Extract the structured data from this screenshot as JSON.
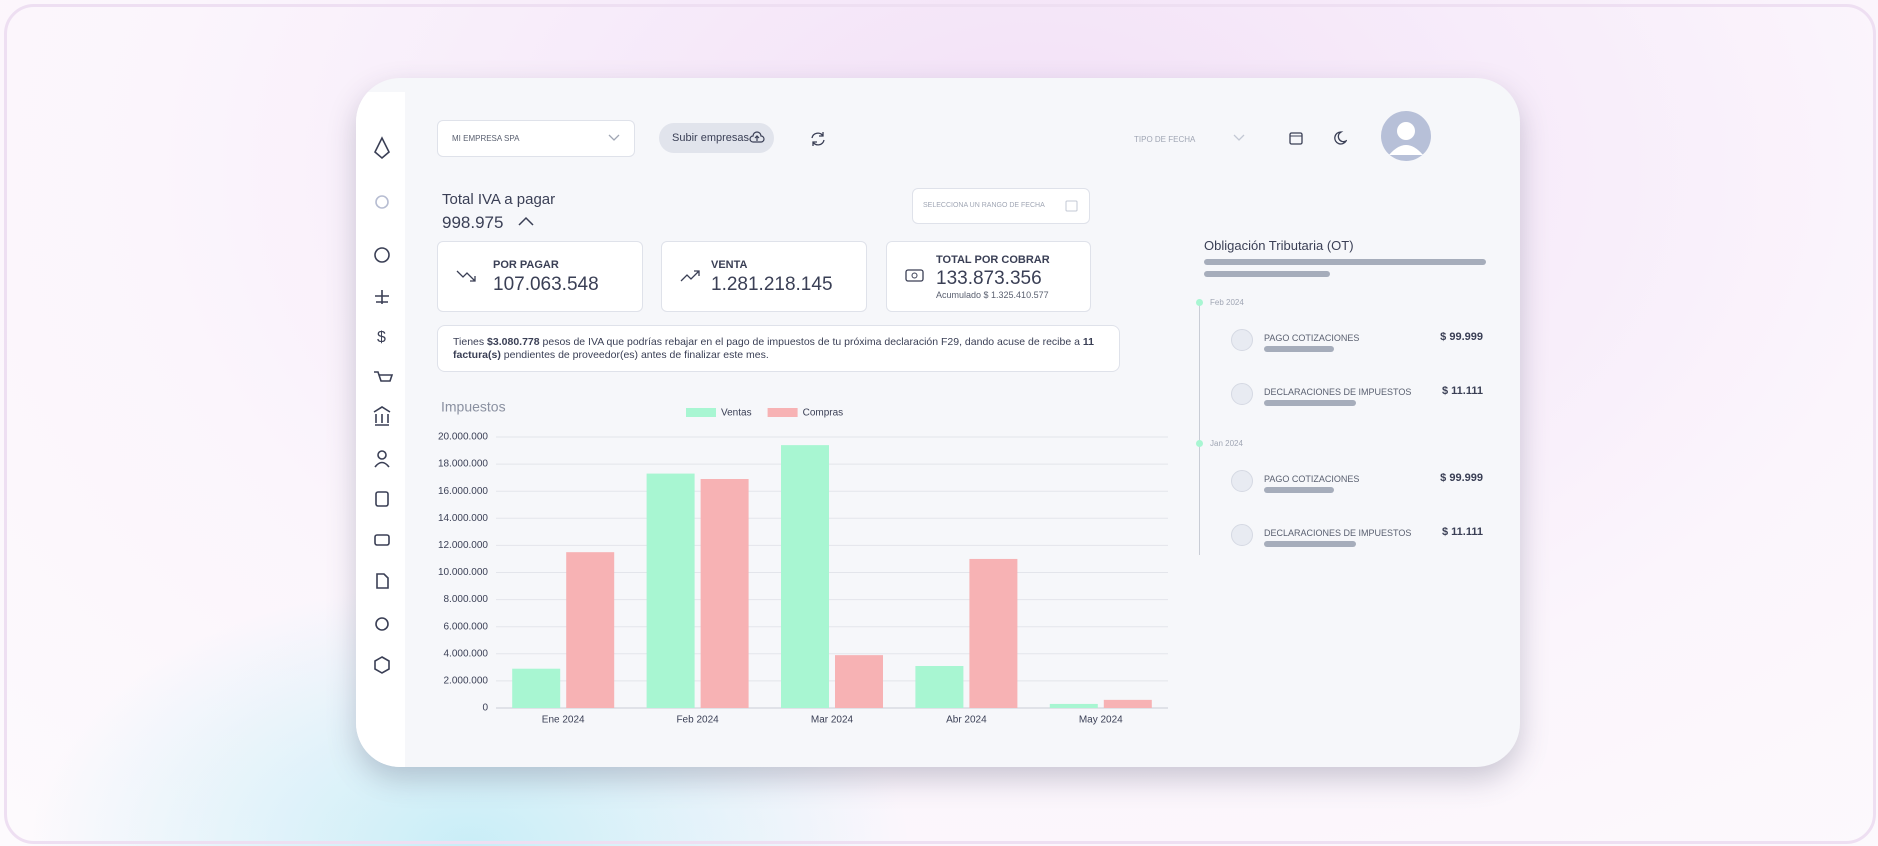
{
  "header": {
    "company": "MI EMPRESA SPA",
    "upload_button": "Subir empresas",
    "date_type": "TIPO DE FECHA"
  },
  "summary": {
    "title": "Total IVA a pagar",
    "value": "998.975",
    "date_range": "SELECCIONA UN RANGO DE FECHA"
  },
  "cards": [
    {
      "label": "POR PAGAR",
      "value": "107.063.548"
    },
    {
      "label": "VENTA",
      "value": "1.281.218.145"
    },
    {
      "label": "TOTAL POR COBRAR",
      "value": "133.873.356",
      "note": "Acumulado $ 1.325.410.577"
    }
  ],
  "notice": {
    "parts": [
      "Tienes ",
      "$3.080.778",
      " pesos de IVA que podrías rebajar en el pago de impuestos de tu próxima declaración F29, dando acuse de recibe a ",
      "11 factura(s)",
      " pendientes de proveedor(es) antes de finalizar este mes."
    ]
  },
  "timeline": {
    "title": "Obligación Tributaria (OT)",
    "groups": [
      {
        "date": "Feb 2024",
        "items": [
          {
            "label": "PAGO COTIZACIONES",
            "amount": "$ 99.999"
          },
          {
            "label": "DECLARACIONES DE IMPUESTOS",
            "amount": "$ 11.111"
          }
        ]
      },
      {
        "date": "Jan 2024",
        "items": [
          {
            "label": "PAGO COTIZACIONES",
            "amount": "$ 99.999"
          },
          {
            "label": "DECLARACIONES DE IMPUESTOS",
            "amount": "$ 11.111"
          }
        ]
      }
    ]
  },
  "chart_data": {
    "type": "bar",
    "title": "Impuestos",
    "categories": [
      "Ene 2024",
      "Feb 2024",
      "Mar 2024",
      "Abr 2024",
      "May 2024"
    ],
    "series": [
      {
        "name": "Ventas",
        "color": "#a8f6d2",
        "values": [
          2900000,
          17300000,
          19400000,
          3100000,
          300000
        ]
      },
      {
        "name": "Compras",
        "color": "#f7b2b4",
        "values": [
          11500000,
          16900000,
          3900000,
          11000000,
          600000
        ]
      }
    ],
    "ylim": [
      0,
      20000000
    ],
    "yticks": [
      0,
      {
        "value": 2000000,
        "label": "2.000.000"
      },
      {
        "value": 4000000,
        "label": "4.000.000"
      },
      {
        "value": 6000000,
        "label": "6.000.000"
      },
      {
        "value": 8000000,
        "label": "8.000.000"
      },
      {
        "value": 10000000,
        "label": "10.000.000"
      },
      {
        "value": 12000000,
        "label": "12.000.000"
      },
      {
        "value": 14000000,
        "label": "14.000.000"
      },
      {
        "value": 16000000,
        "label": "16.000.000"
      },
      {
        "value": 18000000,
        "label": "18.000.000"
      },
      {
        "value": 20000000,
        "label": "20.000.000"
      }
    ],
    "grid": true
  }
}
